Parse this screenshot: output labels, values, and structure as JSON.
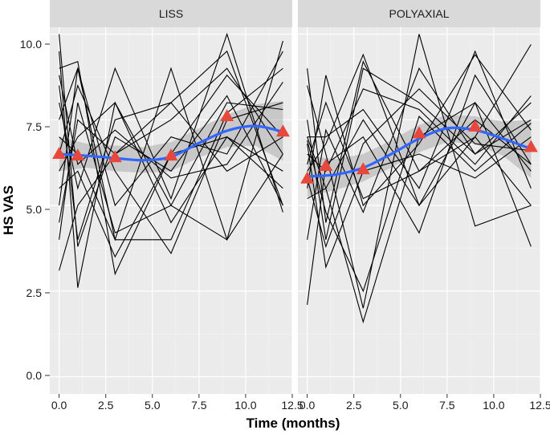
{
  "chart_data": {
    "type": "line",
    "xlabel": "Time (months)",
    "ylabel": "HS VAS",
    "xlim": [
      -0.5,
      12.5
    ],
    "ylim": [
      -0.5,
      10.2
    ],
    "x_ticks": [
      "0.0",
      "2.5",
      "5.0",
      "7.5",
      "10.0",
      "12.5"
    ],
    "y_ticks": [
      "0.0",
      "2.5",
      "5.0",
      "7.5",
      "10.0"
    ],
    "grid": true,
    "timepoints": [
      0,
      1,
      3,
      6,
      9,
      12
    ],
    "colors": {
      "individual": "#000000",
      "smooth": "#3366ff",
      "band": "#999999",
      "mean_marker": "#e8473c",
      "panel_bg": "#ebebeb",
      "strip_bg": "#d9d9d9"
    },
    "panels": [
      {
        "name": "LISS",
        "mean_values": [
          6.5,
          6.45,
          6.4,
          6.45,
          7.6,
          7.15
        ],
        "smooth_x": [
          0,
          1.5,
          3,
          4.5,
          6,
          7.5,
          9,
          10.5,
          12
        ],
        "smooth_y": [
          6.5,
          6.45,
          6.38,
          6.32,
          6.42,
          6.82,
          7.18,
          7.32,
          7.15
        ],
        "band_upper": [
          7.0,
          6.8,
          6.75,
          6.7,
          6.85,
          7.25,
          7.65,
          7.95,
          8.05
        ],
        "band_lower": [
          6.0,
          6.1,
          6.0,
          5.95,
          6.0,
          6.4,
          6.7,
          6.75,
          6.3
        ],
        "series": [
          [
            10.0,
            3.8,
            7.0,
            6.0,
            8.2,
            5.0
          ],
          [
            9.5,
            2.6,
            8.0,
            5.0,
            4.0,
            9.8
          ],
          [
            9.0,
            9.2,
            3.0,
            6.5,
            7.0,
            5.5
          ],
          [
            8.5,
            4.0,
            7.5,
            8.0,
            9.5,
            5.0
          ],
          [
            8.0,
            5.5,
            9.0,
            5.2,
            10.0,
            4.8
          ],
          [
            7.5,
            9.0,
            5.0,
            7.0,
            6.5,
            9.5
          ],
          [
            7.0,
            6.5,
            4.0,
            9.0,
            4.0,
            6.5
          ],
          [
            6.5,
            8.5,
            6.0,
            3.6,
            7.5,
            8.0
          ],
          [
            6.0,
            7.0,
            8.0,
            4.5,
            7.0,
            6.0
          ],
          [
            5.5,
            6.0,
            3.5,
            6.5,
            8.8,
            7.0
          ],
          [
            5.0,
            9.0,
            4.0,
            4.0,
            7.7,
            9.0
          ],
          [
            4.5,
            7.5,
            6.5,
            7.5,
            9.0,
            6.5
          ],
          [
            4.0,
            8.0,
            4.2,
            5.0,
            8.0,
            7.8
          ],
          [
            3.1,
            5.0,
            6.5,
            8.0,
            6.0,
            7.0
          ],
          [
            8.8,
            6.2,
            7.2,
            5.8,
            6.2,
            8.6
          ]
        ]
      },
      {
        "name": "POLYAXIAL",
        "mean_values": [
          5.78,
          6.15,
          6.05,
          7.1,
          7.3,
          6.7
        ],
        "smooth_x": [
          0,
          1.5,
          3,
          4.5,
          6,
          7.5,
          9,
          10.5,
          12
        ],
        "smooth_y": [
          5.85,
          5.9,
          6.1,
          6.5,
          6.95,
          7.25,
          7.2,
          6.95,
          6.65
        ],
        "band_upper": [
          6.45,
          6.35,
          6.5,
          6.9,
          7.35,
          7.65,
          7.6,
          7.45,
          7.5
        ],
        "band_lower": [
          5.25,
          5.45,
          5.7,
          6.1,
          6.55,
          6.85,
          6.8,
          6.45,
          5.8
        ],
        "series": [
          [
            9.0,
            4.5,
            9.2,
            6.0,
            7.0,
            9.7
          ],
          [
            8.5,
            6.5,
            2.0,
            10.0,
            4.4,
            5.0
          ],
          [
            7.5,
            4.0,
            9.0,
            8.0,
            6.5,
            7.5
          ],
          [
            7.0,
            5.5,
            1.6,
            7.0,
            8.0,
            3.8
          ],
          [
            7.0,
            7.0,
            7.8,
            5.5,
            9.5,
            5.5
          ],
          [
            6.8,
            3.2,
            6.0,
            6.5,
            5.8,
            7.0
          ],
          [
            6.5,
            6.0,
            8.4,
            7.8,
            6.2,
            8.2
          ],
          [
            6.2,
            8.0,
            5.2,
            6.0,
            7.5,
            6.2
          ],
          [
            6.0,
            6.8,
            9.4,
            5.0,
            7.0,
            5.0
          ],
          [
            5.8,
            3.8,
            6.8,
            8.4,
            6.8,
            6.6
          ],
          [
            5.5,
            8.8,
            5.0,
            6.8,
            9.4,
            7.2
          ],
          [
            5.2,
            5.5,
            7.5,
            5.0,
            8.0,
            6.0
          ],
          [
            4.0,
            7.2,
            4.8,
            9.0,
            6.5,
            8.0
          ],
          [
            2.1,
            6.2,
            7.0,
            4.2,
            8.8,
            6.2
          ],
          [
            6.9,
            4.8,
            2.5,
            7.6,
            6.0,
            7.4
          ]
        ]
      }
    ]
  }
}
